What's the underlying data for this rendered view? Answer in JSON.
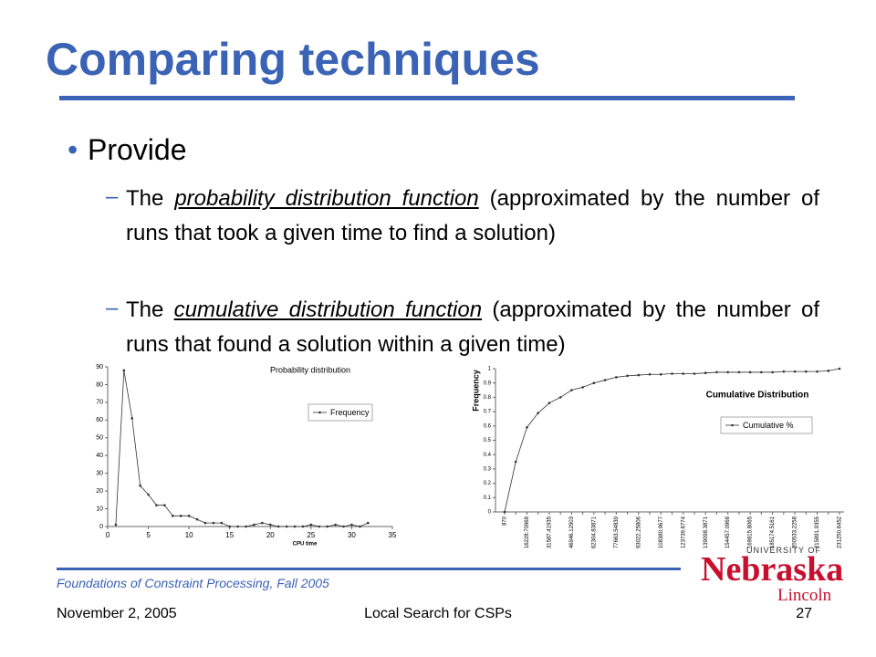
{
  "slide": {
    "title": "Comparing techniques",
    "bullet": "Provide",
    "items": [
      [
        "The ",
        "probability distribution function",
        " (approximated by the number of runs that took a given time to find a solution)"
      ],
      [
        "The ",
        "cumulative distribution function",
        " (approximated by the number of runs that found a solution within a given time)"
      ]
    ],
    "course": "Foundations of Constraint Processing, Fall 2005",
    "date": "November 2, 2005",
    "topic": "Local Search for CSPs",
    "page": "27"
  },
  "logo": {
    "top": "UNIVERSITY OF",
    "name": "Nebraska",
    "campus": "Lincoln"
  },
  "chart_data": [
    {
      "type": "line",
      "title": "Probability distribution",
      "x_label": "CPU time",
      "x": [
        1,
        2,
        3,
        4,
        5,
        6,
        7,
        8,
        9,
        10,
        11,
        12,
        13,
        14,
        15,
        16,
        17,
        18,
        19,
        20,
        21,
        22,
        23,
        24,
        25,
        26,
        27,
        28,
        29,
        30,
        31,
        32
      ],
      "series": [
        {
          "name": "Frequency",
          "color": "#333333",
          "values": [
            1,
            88,
            61,
            23,
            18,
            12,
            12,
            6,
            6,
            6,
            4,
            2,
            2,
            2,
            0,
            0,
            0,
            1,
            2,
            1,
            0,
            0,
            0,
            0,
            1,
            0,
            0,
            1,
            0,
            1,
            0,
            2
          ]
        }
      ],
      "xlim": [
        0,
        35
      ],
      "xticks": [
        0,
        5,
        10,
        15,
        20,
        25,
        30,
        35
      ],
      "ylim": [
        0,
        90
      ],
      "yticks": [
        0,
        10,
        20,
        30,
        40,
        50,
        60,
        70,
        80,
        90
      ],
      "legend": "right"
    },
    {
      "type": "line",
      "title": "Cumulative Distribution",
      "y_label": "Frequency",
      "categories": [
        "870",
        null,
        "16228.70968",
        null,
        "31587.41935",
        null,
        "46946.12903",
        null,
        "62304.83871",
        null,
        "77663.54839",
        null,
        "93022.25806",
        null,
        "108380.9677",
        null,
        "123739.6774",
        null,
        "139098.3871",
        null,
        "154457.0968",
        null,
        "169815.8065",
        null,
        "185174.5161",
        null,
        "200533.2258",
        null,
        "215891.9355",
        null,
        "231250.6452"
      ],
      "series": [
        {
          "name": "Cumulative %",
          "color": "#333333",
          "values": [
            0,
            0.35,
            0.59,
            0.69,
            0.76,
            0.8,
            0.85,
            0.87,
            0.9,
            0.92,
            0.94,
            0.95,
            0.955,
            0.96,
            0.96,
            0.965,
            0.965,
            0.965,
            0.97,
            0.975,
            0.975,
            0.975,
            0.975,
            0.975,
            0.975,
            0.98,
            0.98,
            0.98,
            0.98,
            0.985,
            1
          ]
        }
      ],
      "ylim": [
        0,
        1
      ],
      "yticks": [
        0,
        0.1,
        0.2,
        0.3,
        0.4,
        0.5,
        0.6,
        0.7,
        0.8,
        0.9,
        1
      ],
      "legend": "right"
    }
  ]
}
